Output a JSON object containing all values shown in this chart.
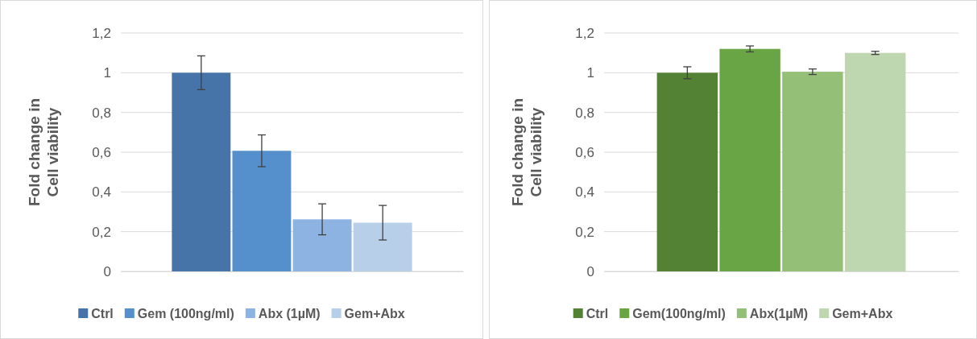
{
  "chart_data": [
    {
      "type": "bar",
      "ylabel": "Fold change in\nCell viability",
      "categories": [
        null
      ],
      "ylim": [
        0,
        1.2
      ],
      "yticks": [
        {
          "value": 0,
          "label": "0"
        },
        {
          "value": 0.2,
          "label": "0,2"
        },
        {
          "value": 0.4,
          "label": "0,4"
        },
        {
          "value": 0.6,
          "label": "0,6"
        },
        {
          "value": 0.8,
          "label": "0,8"
        },
        {
          "value": 1,
          "label": "1"
        },
        {
          "value": 1.2,
          "label": "1,2"
        }
      ],
      "grid": "y",
      "legend": "bottom",
      "series": [
        {
          "name": "Ctrl",
          "color": "#4674a8",
          "values": [
            1.0
          ],
          "errors": [
            0.085
          ]
        },
        {
          "name": "Gem (100ng/ml)",
          "color": "#5590cc",
          "values": [
            0.607
          ],
          "errors": [
            0.08
          ]
        },
        {
          "name": "Abx (1µM)",
          "color": "#8db3e2",
          "values": [
            0.262
          ],
          "errors": [
            0.078
          ]
        },
        {
          "name": "Gem+Abx",
          "color": "#b8cfea",
          "values": [
            0.245
          ],
          "errors": [
            0.087
          ]
        }
      ]
    },
    {
      "type": "bar",
      "ylabel": "Fold change in\nCell viability",
      "categories": [
        null
      ],
      "ylim": [
        0,
        1.2
      ],
      "yticks": [
        {
          "value": 0,
          "label": "0"
        },
        {
          "value": 0.2,
          "label": "0,2"
        },
        {
          "value": 0.4,
          "label": "0,4"
        },
        {
          "value": 0.6,
          "label": "0,6"
        },
        {
          "value": 0.8,
          "label": "0,8"
        },
        {
          "value": 1,
          "label": "1"
        },
        {
          "value": 1.2,
          "label": "1,2"
        }
      ],
      "grid": "y",
      "legend": "bottom",
      "series": [
        {
          "name": "Ctrl",
          "color": "#548235",
          "values": [
            1.0
          ],
          "errors": [
            0.03
          ]
        },
        {
          "name": "Gem(100ng/ml)",
          "color": "#6aa545",
          "values": [
            1.12
          ],
          "errors": [
            0.015
          ]
        },
        {
          "name": "Abx(1µM)",
          "color": "#93bf77",
          "values": [
            1.005
          ],
          "errors": [
            0.014
          ]
        },
        {
          "name": "Gem+Abx",
          "color": "#bfd7b0",
          "values": [
            1.1
          ],
          "errors": [
            0.008
          ]
        }
      ]
    }
  ]
}
